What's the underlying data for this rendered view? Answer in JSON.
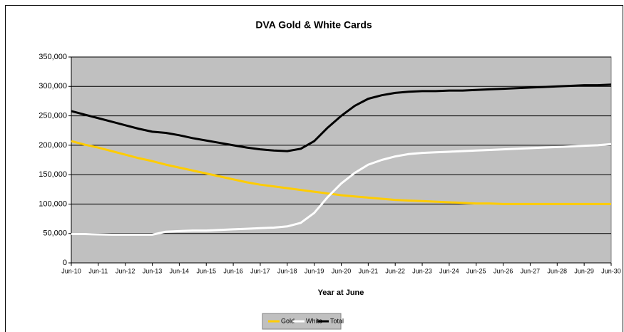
{
  "chart_data": {
    "type": "line",
    "title": "DVA Gold & White Cards",
    "x_label": "Year at June",
    "categories": [
      "Jun-10",
      null,
      "Jun-11",
      null,
      "Jun-12",
      null,
      "Jun-13",
      null,
      "Jun-14",
      null,
      "Jun-15",
      null,
      "Jun-16",
      null,
      "Jun-17",
      null,
      "Jun-18",
      null,
      "Jun-19",
      null,
      "Jun-20",
      null,
      "Jun-21",
      null,
      "Jun-22",
      null,
      "Jun-23",
      null,
      "Jun-24",
      null,
      "Jun-25",
      null,
      "Jun-26",
      null,
      "Jun-27",
      null,
      "Jun-28",
      null,
      "Jun-29",
      null,
      "Jun-30"
    ],
    "series": [
      {
        "name": "Gold",
        "color": "#ffcc00",
        "values": [
          207000,
          201000,
          196000,
          190000,
          184000,
          178000,
          173000,
          167000,
          162000,
          157000,
          152000,
          147000,
          142000,
          137000,
          133000,
          130000,
          127000,
          124000,
          121000,
          118000,
          115000,
          113000,
          111000,
          109000,
          107000,
          106000,
          105000,
          104000,
          103000,
          102000,
          101000,
          101000,
          100000,
          100000,
          100000,
          100000,
          100000,
          100000,
          100000,
          100000,
          100000
        ]
      },
      {
        "name": "White",
        "color": "#ffffff",
        "values": [
          49000,
          49000,
          48500,
          48000,
          48000,
          48000,
          48000,
          53000,
          54000,
          55000,
          55000,
          56000,
          57000,
          58000,
          59000,
          60000,
          62000,
          68000,
          85000,
          112000,
          135000,
          153000,
          167000,
          175000,
          181000,
          185000,
          187000,
          188000,
          189000,
          190000,
          191000,
          192000,
          193000,
          194000,
          195000,
          196000,
          197000,
          198000,
          199000,
          200000,
          202000
        ]
      },
      {
        "name": "Total",
        "color": "#000000",
        "values": [
          258000,
          252000,
          246000,
          240000,
          234000,
          228000,
          223000,
          221000,
          217000,
          212000,
          208000,
          204000,
          200000,
          196000,
          193000,
          191000,
          190000,
          194000,
          207000,
          230000,
          250000,
          267000,
          279000,
          285000,
          289000,
          291000,
          292000,
          292000,
          293000,
          293000,
          294000,
          295000,
          296000,
          297000,
          298000,
          299000,
          300000,
          301000,
          302000,
          302000,
          303000
        ]
      }
    ],
    "ylim": [
      0,
      350000
    ],
    "yticks": [
      0,
      {
        "value": 50000,
        "label": "50,000"
      },
      {
        "value": 100000,
        "label": "100,000"
      },
      {
        "value": 150000,
        "label": "150,000"
      },
      {
        "value": 200000,
        "label": "200,000"
      },
      {
        "value": 250000,
        "label": "250,000"
      },
      {
        "value": 300000,
        "label": "300,000"
      },
      {
        "value": 350000,
        "label": "350,000"
      }
    ],
    "grid": true,
    "plot_background": "#c0c0c0",
    "legend": "bottom"
  }
}
